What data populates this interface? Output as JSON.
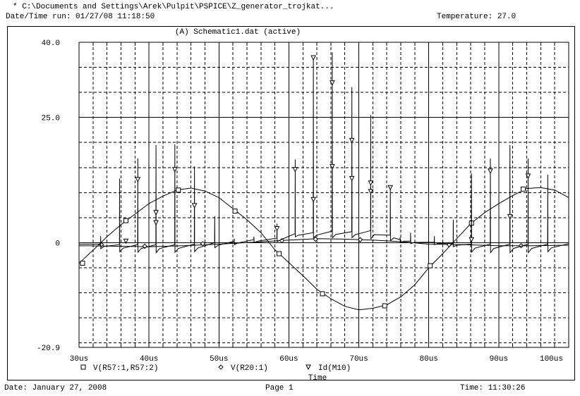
{
  "header": {
    "file_path": "* C:\\Documents and Settings\\Arek\\Pulpit\\PSPICE\\Z_generator_trojkat...",
    "run_datetime": "Date/Time run: 01/27/08 11:18:50",
    "temperature": "Temperature: 27.0"
  },
  "footer": {
    "date": "Date: January 27, 2008",
    "page": "Page 1",
    "time": "Time: 11:30:26"
  },
  "chart_data": {
    "type": "line",
    "title": "(A) Schematic1.dat (active)",
    "xlabel": "Time",
    "ylabel": "",
    "xlim": [
      30,
      100
    ],
    "ylim": [
      -20.9,
      40.0
    ],
    "x_unit": "us",
    "x_ticks": [
      {
        "value": 30,
        "label": "30us"
      },
      {
        "value": 40,
        "label": "40us"
      },
      {
        "value": 50,
        "label": "50us"
      },
      {
        "value": 60,
        "label": "60us"
      },
      {
        "value": 70,
        "label": "70us"
      },
      {
        "value": 80,
        "label": "80us"
      },
      {
        "value": 90,
        "label": "90us"
      },
      {
        "value": 100,
        "label": "100us"
      }
    ],
    "y_ticks": [
      {
        "value": 40.0,
        "label": "40.0"
      },
      {
        "value": 25.0,
        "label": "25.0"
      },
      {
        "value": 0,
        "label": "0"
      },
      {
        "value": -20.9,
        "label": "-20.9"
      }
    ],
    "grid": true,
    "legend_position": "bottom",
    "series": [
      {
        "name": "V(R57:1,R57:2)",
        "marker": "square",
        "marker_glyph": "□",
        "x": [
          30,
          32,
          34,
          36,
          38,
          40,
          42,
          44,
          46,
          48,
          50,
          52,
          54,
          56,
          58,
          60,
          62,
          64,
          66,
          68,
          70,
          72,
          74,
          76,
          78,
          80,
          82,
          84,
          86,
          88,
          90,
          92,
          94,
          96,
          98,
          100
        ],
        "y": [
          -4.1,
          -1.5,
          1.2,
          3.6,
          5.7,
          7.8,
          9.3,
          10.5,
          10.9,
          10.3,
          9.0,
          6.8,
          4.6,
          2.0,
          -1.4,
          -4.0,
          -6.6,
          -9.3,
          -11.2,
          -12.7,
          -13.4,
          -13.1,
          -12.4,
          -10.8,
          -8.4,
          -5.0,
          -2.2,
          0.8,
          3.8,
          6.0,
          7.8,
          9.4,
          10.8,
          11.0,
          10.5,
          9.0
        ],
        "markers_x": [
          30.5,
          36.7,
          44.2,
          52.3,
          58.6,
          64.8,
          73.7,
          80.2,
          86.1,
          93.5
        ],
        "markers_y": [
          -4.1,
          4.4,
          10.5,
          6.3,
          -2.2,
          -10.2,
          -12.6,
          -4.6,
          3.9,
          10.7
        ]
      },
      {
        "name": "V(R20:1)",
        "marker": "diamond",
        "marker_glyph": "◇",
        "x": [
          30,
          35,
          40,
          45,
          50,
          55,
          60,
          64,
          68,
          72,
          76,
          80,
          85,
          90,
          95,
          100
        ],
        "y": [
          -0.6,
          -0.7,
          -0.8,
          -0.6,
          -0.3,
          0.1,
          0.5,
          0.8,
          0.7,
          0.5,
          0.2,
          -0.3,
          -0.4,
          -0.6,
          -0.6,
          -0.5
        ],
        "markers_x": [
          33.2,
          39.4,
          47.7,
          59.0,
          63.8,
          70.2,
          82.9,
          93.2
        ],
        "markers_y": [
          -0.4,
          -0.7,
          -0.2,
          0.4,
          0.7,
          0.6,
          -0.4,
          -0.6
        ]
      },
      {
        "name": "Id(M10)",
        "marker": "triangle-down",
        "marker_glyph": "▿",
        "spikes": [
          {
            "t": 33.1,
            "pre": -0.3,
            "peak": 1.3,
            "post": -1.2
          },
          {
            "t": 35.8,
            "pre": -0.4,
            "peak": 12.8,
            "post": -1.8
          },
          {
            "t": 38.4,
            "pre": -0.4,
            "peak": 16.8,
            "post": -1.9
          },
          {
            "t": 41.0,
            "pre": -0.4,
            "peak": 19.5,
            "post": -2.0
          },
          {
            "t": 43.7,
            "pre": -0.4,
            "peak": 19.6,
            "post": -1.9
          },
          {
            "t": 46.5,
            "pre": -0.3,
            "peak": 15.2,
            "post": -1.8
          },
          {
            "t": 49.4,
            "pre": 0.0,
            "peak": 5.3,
            "post": -1.0
          },
          {
            "t": 52.2,
            "pre": 0.3,
            "peak": 0.8,
            "post": -0.4
          },
          {
            "t": 55.0,
            "pre": 0.6,
            "peak": 1.2,
            "post": 0.0
          },
          {
            "t": 58.3,
            "pre": 0.9,
            "peak": 3.8,
            "post": 0.2
          },
          {
            "t": 60.9,
            "pre": 1.8,
            "peak": 16.6,
            "post": 1.2
          },
          {
            "t": 63.5,
            "pre": 2.0,
            "peak": 37.2,
            "post": 1.0
          },
          {
            "t": 66.2,
            "pre": 2.3,
            "peak": 38.0,
            "post": 1.0
          },
          {
            "t": 69.0,
            "pre": 2.2,
            "peak": 31.0,
            "post": 1.0
          },
          {
            "t": 71.7,
            "pre": 2.4,
            "peak": 25.5,
            "post": 0.8
          },
          {
            "t": 74.5,
            "pre": 1.5,
            "peak": 11.0,
            "post": 0.4
          },
          {
            "t": 75.9,
            "pre": 0.6,
            "peak": 1.1,
            "post": 0.0
          },
          {
            "t": 77.4,
            "pre": 0.3,
            "peak": 2.0,
            "post": -0.2
          },
          {
            "t": 80.8,
            "pre": 0.1,
            "peak": 1.3,
            "post": -0.4
          },
          {
            "t": 83.5,
            "pre": -0.2,
            "peak": 4.6,
            "post": -0.8
          },
          {
            "t": 86.1,
            "pre": -0.3,
            "peak": 13.8,
            "post": -1.9
          },
          {
            "t": 88.8,
            "pre": -0.3,
            "peak": 16.8,
            "post": -2.0
          },
          {
            "t": 91.6,
            "pre": -0.3,
            "peak": 19.5,
            "post": -2.0
          },
          {
            "t": 94.2,
            "pre": -0.3,
            "peak": 16.8,
            "post": -2.0
          },
          {
            "t": 97.0,
            "pre": -0.3,
            "peak": 13.6,
            "post": -1.8
          }
        ],
        "end_value": -0.2,
        "markers_x": [
          36.7,
          38.4,
          41.0,
          41.0,
          43.7,
          46.5,
          58.3,
          60.9,
          63.5,
          63.5,
          66.2,
          66.2,
          69.0,
          69.0,
          71.7,
          71.7,
          74.5,
          86.1,
          88.8,
          91.6,
          94.2
        ],
        "markers_y": [
          0.3,
          12.6,
          6.0,
          4.0,
          14.6,
          7.4,
          2.8,
          14.6,
          36.9,
          8.6,
          31.9,
          15.2,
          20.4,
          12.8,
          11.9,
          10.2,
          11.0,
          0.6,
          14.3,
          5.2,
          13.3
        ]
      }
    ]
  }
}
